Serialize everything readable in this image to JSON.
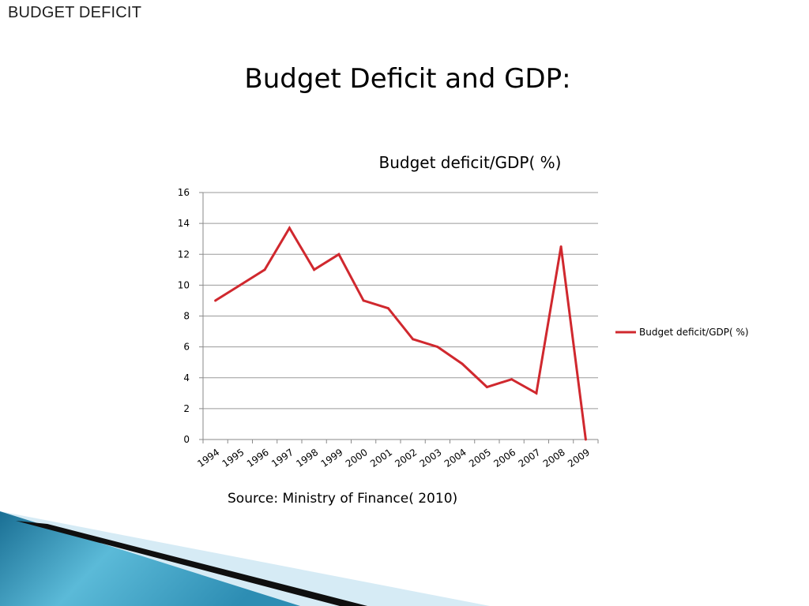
{
  "header": {
    "section_title": "BUDGET DEFICIT"
  },
  "slide": {
    "title": "Budget Deficit and GDP:",
    "source": "Source: Ministry of Finance( 2010)"
  },
  "colors": {
    "series": "#d0282e",
    "grid": "#9a9a9a",
    "axis": "#8a8a8a"
  },
  "chart_data": {
    "type": "line",
    "title": "Budget deficit/GDP( %)",
    "xlabel": "",
    "ylabel": "",
    "categories": [
      "1994",
      "1995",
      "1996",
      "1997",
      "1998",
      "1999",
      "2000",
      "2001",
      "2002",
      "2003",
      "2004",
      "2005",
      "2006",
      "2007",
      "2008",
      "2009"
    ],
    "series": [
      {
        "name": "Budget deficit/GDP( %)",
        "values": [
          9,
          10,
          11,
          13.7,
          11,
          12,
          9,
          8.5,
          6.5,
          6,
          4.9,
          3.4,
          3.9,
          3,
          12.5,
          0
        ]
      }
    ],
    "ylim": [
      0,
      16
    ],
    "yticks": [
      0,
      2,
      4,
      6,
      8,
      10,
      12,
      14,
      16
    ],
    "grid": true,
    "legend_position": "right"
  }
}
